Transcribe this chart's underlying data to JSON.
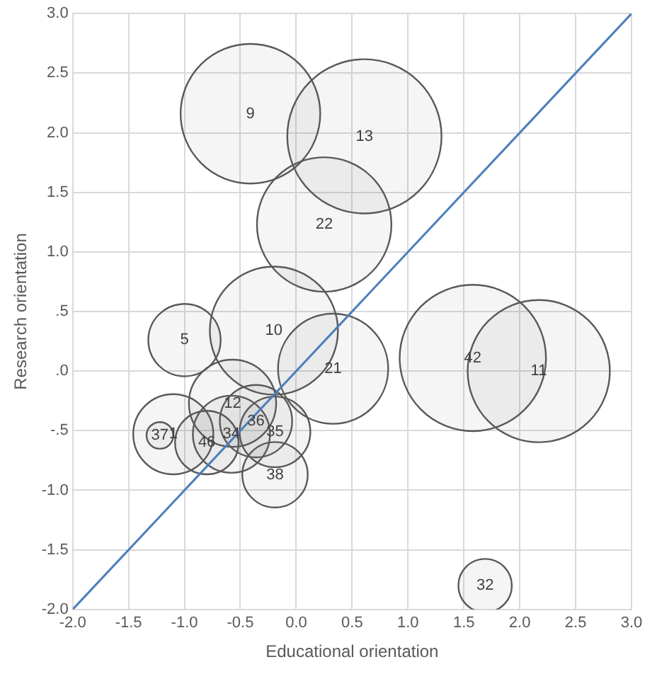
{
  "chart_data": {
    "type": "bubble",
    "xlabel": "Educational orientation",
    "ylabel": "Research orientation",
    "xlim": [
      -2,
      3
    ],
    "ylim": [
      -2,
      3
    ],
    "xticks": [
      {
        "value": -2,
        "label": "-2.0"
      },
      {
        "value": -1.5,
        "label": "-1.5"
      },
      {
        "value": -1,
        "label": "-1.0"
      },
      {
        "value": -0.5,
        "label": "-0.5"
      },
      {
        "value": 0,
        "label": "0.0"
      },
      {
        "value": 0.5,
        "label": "0.5"
      },
      {
        "value": 1,
        "label": "1.0"
      },
      {
        "value": 1.5,
        "label": "1.5"
      },
      {
        "value": 2,
        "label": "2.0"
      },
      {
        "value": 2.5,
        "label": "2.5"
      },
      {
        "value": 3,
        "label": "3.0"
      }
    ],
    "yticks": [
      {
        "value": -2,
        "label": "-2.0"
      },
      {
        "value": -1.5,
        "label": "-1.5"
      },
      {
        "value": -1,
        "label": "-1.0"
      },
      {
        "value": -0.5,
        "label": "-.5"
      },
      {
        "value": 0,
        "label": ".0"
      },
      {
        "value": 0.5,
        "label": ".5"
      },
      {
        "value": 1,
        "label": "1.0"
      },
      {
        "value": 1.5,
        "label": "1.5"
      },
      {
        "value": 2,
        "label": "2.0"
      },
      {
        "value": 2.5,
        "label": "2.5"
      },
      {
        "value": 3,
        "label": "3.0"
      }
    ],
    "grid": true,
    "legend": false,
    "marker": "circle",
    "series": [
      {
        "type": "line",
        "color": "#4a7ebb",
        "x": [
          -2,
          3
        ],
        "values": [
          -2,
          3
        ],
        "marker": "none",
        "line_style": "solid"
      },
      {
        "name": "9",
        "color": "#595959",
        "x": [
          -0.41
        ],
        "values": [
          2.16
        ],
        "sizes": [
          0.82
        ]
      },
      {
        "name": "13",
        "color": "#595959",
        "x": [
          0.61
        ],
        "values": [
          1.97
        ],
        "sizes": [
          1
        ]
      },
      {
        "name": "22",
        "color": "#595959",
        "x": [
          0.25
        ],
        "values": [
          1.23
        ],
        "sizes": [
          0.76
        ]
      },
      {
        "name": "10",
        "color": "#595959",
        "x": [
          -0.2
        ],
        "values": [
          0.34
        ],
        "sizes": [
          0.69
        ]
      },
      {
        "name": "5",
        "color": "#595959",
        "x": [
          -1.0
        ],
        "values": [
          0.26
        ],
        "sizes": [
          0.22
        ]
      },
      {
        "name": "21",
        "color": "#595959",
        "x": [
          0.33
        ],
        "values": [
          0.02
        ],
        "sizes": [
          0.51
        ]
      },
      {
        "name": "42",
        "color": "#595959",
        "x": [
          1.58
        ],
        "values": [
          0.11
        ],
        "sizes": [
          0.9
        ]
      },
      {
        "name": "11",
        "color": "#595959",
        "x": [
          2.17
        ],
        "values": [
          0.0
        ],
        "sizes": [
          0.85
        ]
      },
      {
        "name": "12",
        "color": "#595959",
        "x": [
          -0.57
        ],
        "values": [
          -0.27
        ],
        "sizes": [
          0.32
        ]
      },
      {
        "name": "36",
        "color": "#595959",
        "x": [
          -0.36
        ],
        "values": [
          -0.42
        ],
        "sizes": [
          0.22
        ]
      },
      {
        "name": "35",
        "color": "#595959",
        "x": [
          -0.19
        ],
        "values": [
          -0.51
        ],
        "sizes": [
          0.21
        ]
      },
      {
        "name": "34",
        "color": "#595959",
        "x": [
          -0.58
        ],
        "values": [
          -0.53
        ],
        "sizes": [
          0.25
        ]
      },
      {
        "name": "46",
        "color": "#595959",
        "x": [
          -0.8
        ],
        "values": [
          -0.6
        ],
        "sizes": [
          0.17
        ]
      },
      {
        "name": "37",
        "color": "#595959",
        "x": [
          -1.22
        ],
        "values": [
          -0.54
        ],
        "sizes": [
          0.03
        ]
      },
      {
        "name": "1",
        "color": "#595959",
        "x": [
          -1.1
        ],
        "values": [
          -0.53
        ],
        "sizes": [
          0.27
        ]
      },
      {
        "name": "38",
        "color": "#595959",
        "x": [
          -0.19
        ],
        "values": [
          -0.87
        ],
        "sizes": [
          0.18
        ]
      },
      {
        "name": "32",
        "color": "#595959",
        "x": [
          1.69
        ],
        "values": [
          -1.8
        ],
        "sizes": [
          0.12
        ]
      }
    ]
  }
}
